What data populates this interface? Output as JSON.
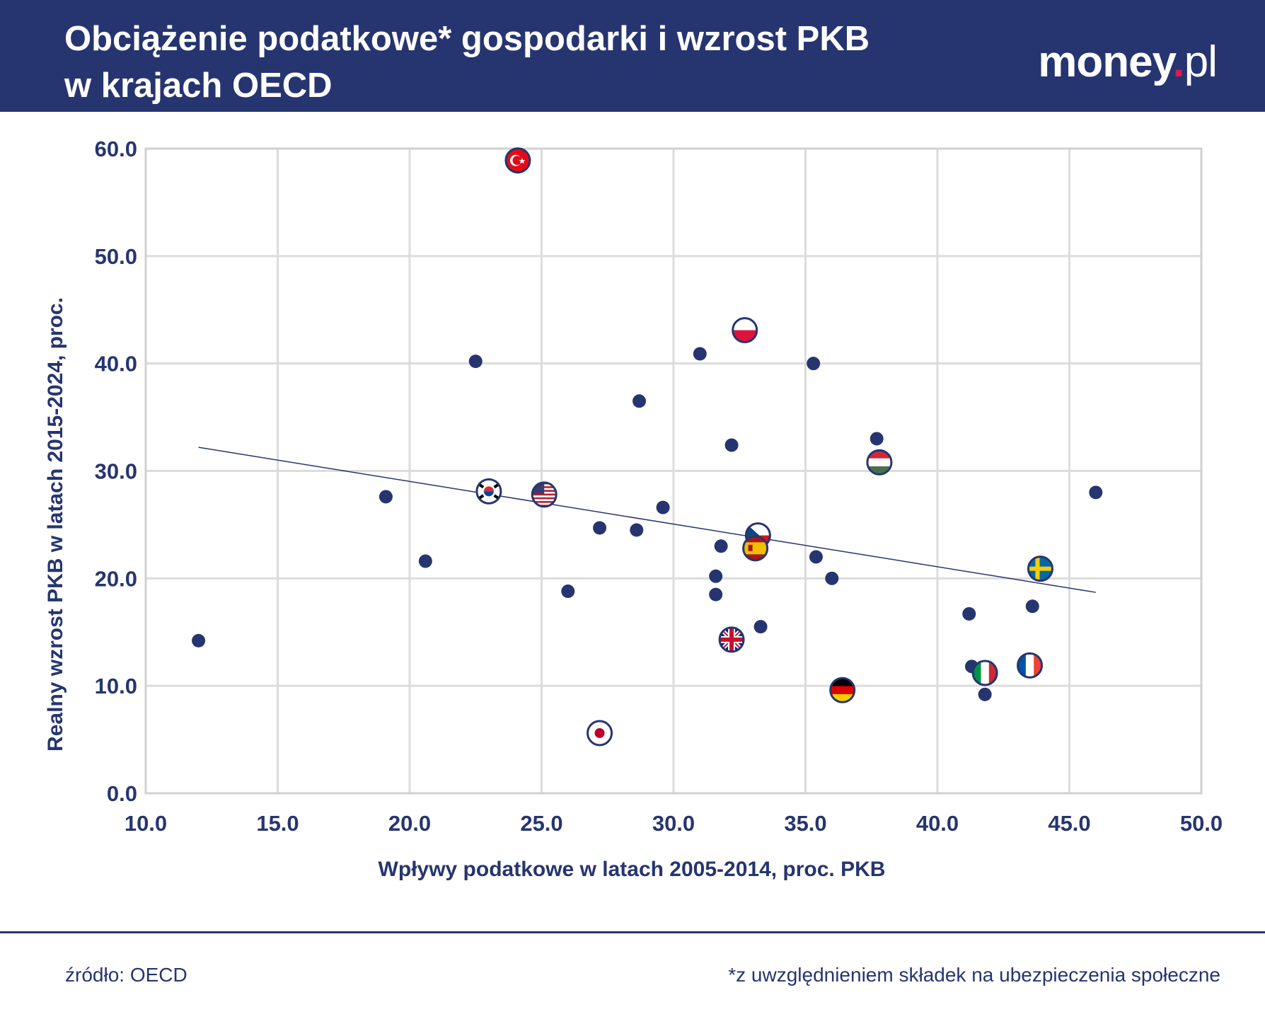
{
  "header": {
    "title_line1": "Obciążenie podatkowe* gospodarki i wzrost PKB",
    "title_line2": "w krajach OECD",
    "logo_main": "money",
    "logo_dot": ".",
    "logo_tld": "pl"
  },
  "footer": {
    "source": "źródło: OECD",
    "footnote": "*z uwzględnieniem składek na ubezpieczenia społeczne"
  },
  "colors": {
    "navy": "#263570",
    "grid": "#dcdcdc",
    "accent": "#e0174f"
  },
  "chart_data": {
    "type": "scatter",
    "xlabel": "Wpływy podatkowe w latach 2005-2014, proc. PKB",
    "ylabel": "Realny wzrost PKB w latach 2015-2024, proc.",
    "xlim": [
      10,
      50
    ],
    "ylim": [
      0,
      60
    ],
    "xticks": [
      "10.0",
      "15.0",
      "20.0",
      "25.0",
      "30.0",
      "35.0",
      "40.0",
      "45.0",
      "50.0"
    ],
    "yticks": [
      "0.0",
      "10.0",
      "20.0",
      "30.0",
      "40.0",
      "50.0",
      "60.0"
    ],
    "grid": true,
    "trendline": {
      "x": [
        12.0,
        46.0
      ],
      "y": [
        32.2,
        18.7
      ]
    },
    "points": [
      {
        "x": 12.0,
        "y": 14.2
      },
      {
        "x": 19.1,
        "y": 27.6
      },
      {
        "x": 20.6,
        "y": 21.6
      },
      {
        "x": 22.5,
        "y": 40.2
      },
      {
        "x": 26.0,
        "y": 18.8
      },
      {
        "x": 27.2,
        "y": 24.7
      },
      {
        "x": 28.6,
        "y": 24.5
      },
      {
        "x": 28.7,
        "y": 36.5
      },
      {
        "x": 29.6,
        "y": 26.6
      },
      {
        "x": 31.0,
        "y": 40.9
      },
      {
        "x": 31.6,
        "y": 20.2
      },
      {
        "x": 31.6,
        "y": 18.5
      },
      {
        "x": 31.8,
        "y": 23.0
      },
      {
        "x": 32.2,
        "y": 32.4
      },
      {
        "x": 33.3,
        "y": 15.5
      },
      {
        "x": 35.3,
        "y": 40.0
      },
      {
        "x": 35.4,
        "y": 22.0
      },
      {
        "x": 36.0,
        "y": 20.0
      },
      {
        "x": 37.7,
        "y": 33.0
      },
      {
        "x": 41.2,
        "y": 16.7
      },
      {
        "x": 41.3,
        "y": 11.8
      },
      {
        "x": 41.8,
        "y": 9.2
      },
      {
        "x": 43.6,
        "y": 17.4
      },
      {
        "x": 46.0,
        "y": 28.0
      }
    ],
    "flagged_points": [
      {
        "x": 24.1,
        "y": 58.9,
        "flag": "turkey-flag-icon"
      },
      {
        "x": 32.7,
        "y": 43.1,
        "flag": "poland-flag-icon"
      },
      {
        "x": 37.8,
        "y": 30.8,
        "flag": "hungary-flag-icon"
      },
      {
        "x": 23.0,
        "y": 28.1,
        "flag": "south-korea-flag-icon"
      },
      {
        "x": 25.1,
        "y": 27.8,
        "flag": "usa-flag-icon"
      },
      {
        "x": 33.2,
        "y": 24.0,
        "flag": "czech-flag-icon"
      },
      {
        "x": 33.1,
        "y": 22.8,
        "flag": "spain-flag-icon"
      },
      {
        "x": 43.9,
        "y": 20.9,
        "flag": "sweden-flag-icon"
      },
      {
        "x": 32.2,
        "y": 14.3,
        "flag": "uk-flag-icon"
      },
      {
        "x": 43.5,
        "y": 11.9,
        "flag": "france-flag-icon"
      },
      {
        "x": 41.8,
        "y": 11.2,
        "flag": "italy-flag-icon"
      },
      {
        "x": 36.4,
        "y": 9.6,
        "flag": "germany-flag-icon"
      },
      {
        "x": 27.2,
        "y": 5.6,
        "flag": "japan-flag-icon"
      }
    ]
  }
}
